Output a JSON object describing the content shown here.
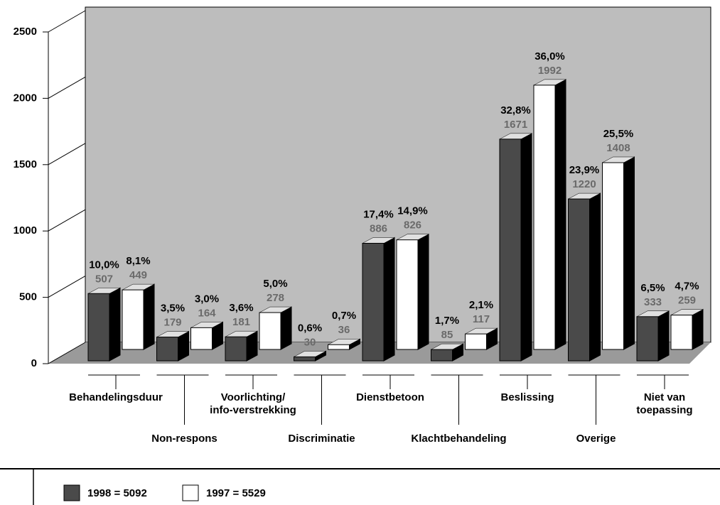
{
  "chart_data": {
    "type": "bar3d",
    "categories": [
      "Behandelingsduur",
      "Non-respons",
      "Voorlichting/\ninfo-verstrekking",
      "Discriminatie",
      "Dienstbetoon",
      "Klachtbehandeling",
      "Beslissing",
      "Overige",
      "Niet van\ntoepassing"
    ],
    "series": [
      {
        "name": "1998 = 5092",
        "color": "#4a4a4a",
        "values": [
          507,
          179,
          181,
          30,
          886,
          85,
          1671,
          1220,
          333
        ],
        "percent_labels": [
          "10,0%",
          "3,5%",
          "3,6%",
          "0,6%",
          "17,4%",
          "1,7%",
          "32,8%",
          "23,9%",
          "6,5%"
        ]
      },
      {
        "name": "1997 = 5529",
        "color": "#ffffff",
        "values": [
          449,
          164,
          278,
          36,
          826,
          117,
          1992,
          1408,
          259
        ],
        "percent_labels": [
          "8,1%",
          "3,0%",
          "5,0%",
          "0,7%",
          "14,9%",
          "2,1%",
          "36,0%",
          "25,5%",
          "4,7%"
        ]
      }
    ],
    "ylim": [
      0,
      2500
    ],
    "yticks": [
      0,
      500,
      1000,
      1500,
      2000,
      2500
    ],
    "grid": true
  }
}
